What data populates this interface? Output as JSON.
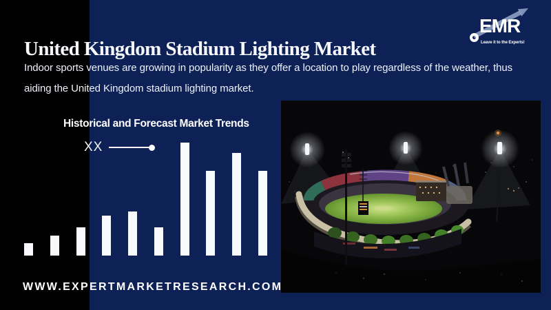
{
  "colors": {
    "background": "#0d2156",
    "side_stripe": "#000000",
    "text": "#ffffff",
    "bar": "#f7f9fc",
    "logo_arrow": "#97a6c9"
  },
  "header": {
    "title": "United Kingdom Stadium Lighting Market"
  },
  "logo": {
    "name": "EMR",
    "tagline": "Leave it to the Experts!"
  },
  "intro": {
    "lines": [
      "Indoor sports venues are growing in popularity as they offer a location to play regardless of the weather, thus",
      "aiding the United Kingdom stadium lighting market."
    ]
  },
  "chart_data": {
    "type": "bar",
    "title": "Historical and Forecast Market Trends",
    "legend_label": "XX",
    "legend_marker": "line-with-dot",
    "values": [
      18,
      29,
      41,
      58,
      64,
      41,
      164,
      123,
      149,
      123
    ],
    "value_unit": "relative-height-px",
    "values_are_masked": true,
    "x_tick_labels": [],
    "x_axis_visible": false,
    "y_axis_visible": false,
    "bar_color": "#f7f9fc",
    "background": "#0d2156"
  },
  "photo": {
    "label": "night stadium with floodlights"
  },
  "footer": {
    "website": "WWW.EXPERTMARKETRESEARCH.COM"
  }
}
